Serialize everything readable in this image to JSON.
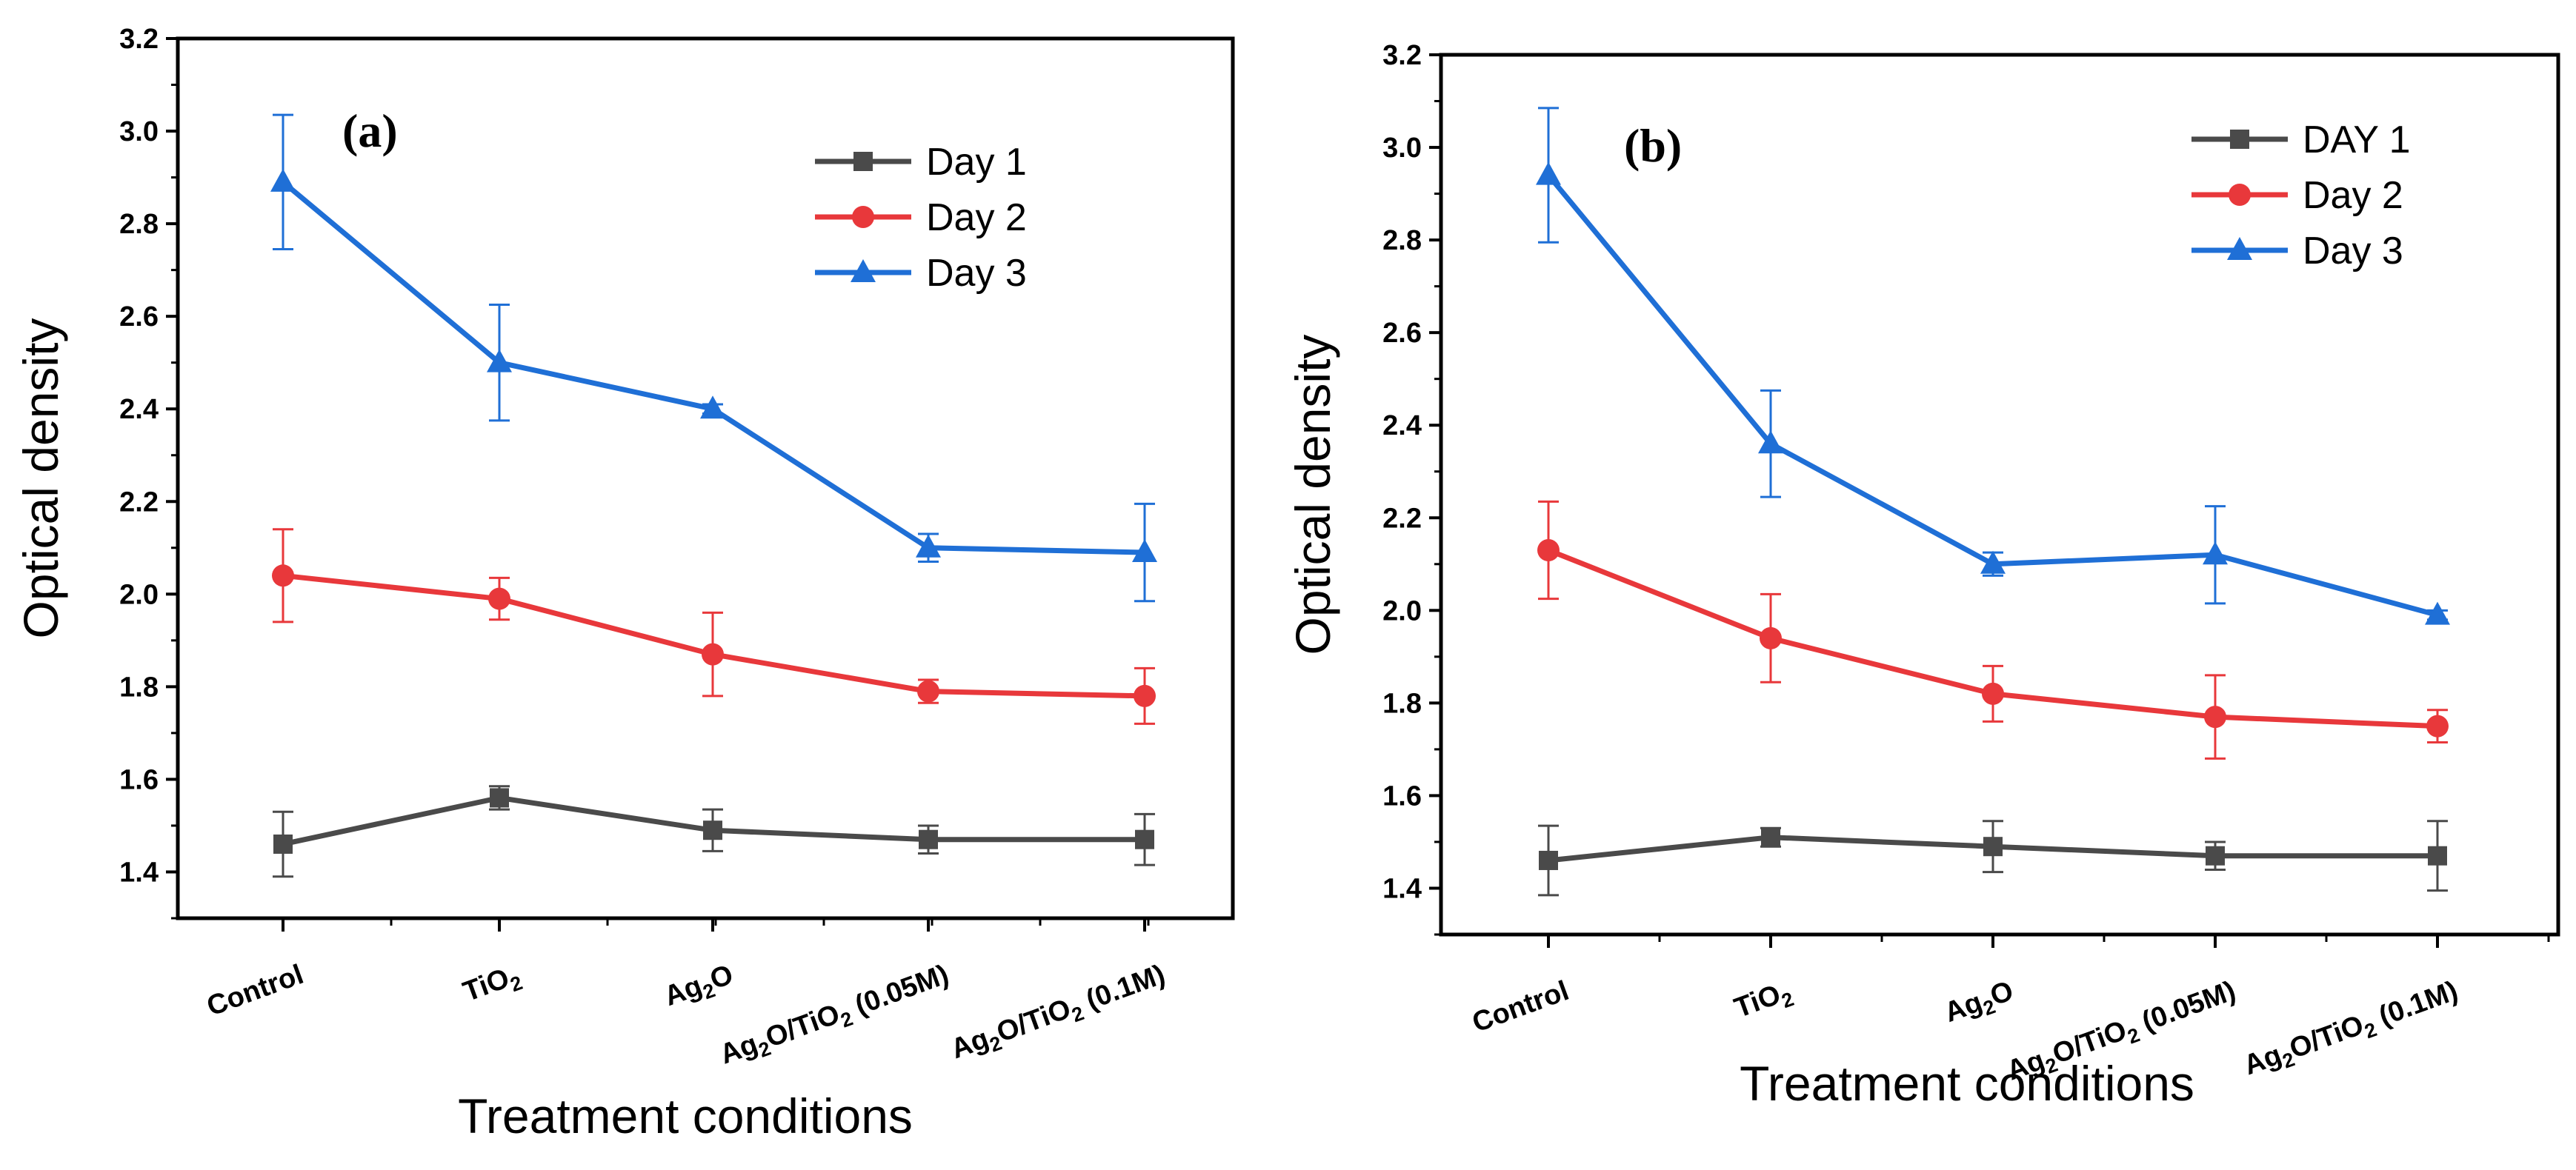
{
  "chart_data": [
    {
      "type": "line",
      "panel_label": "(a)",
      "xlabel": "Treatment conditions",
      "ylabel": "Optical density",
      "ylim": [
        1.3,
        3.2
      ],
      "yticks": [
        "1.4",
        "1.6",
        "1.8",
        "2.0",
        "2.2",
        "2.4",
        "2.6",
        "2.8",
        "3.0",
        "3.2"
      ],
      "categories": [
        {
          "base": "Control",
          "parts": [
            {
              "t": "Control",
              "sub": false
            }
          ]
        },
        {
          "base": "TiO2",
          "parts": [
            {
              "t": "TiO",
              "sub": false
            },
            {
              "t": "2",
              "sub": true
            }
          ]
        },
        {
          "base": "Ag2O",
          "parts": [
            {
              "t": "Ag",
              "sub": false
            },
            {
              "t": "2",
              "sub": true
            },
            {
              "t": "O",
              "sub": false
            }
          ]
        },
        {
          "base": "Ag2O/TiO2 (0.05M)",
          "parts": [
            {
              "t": "Ag",
              "sub": false
            },
            {
              "t": "2",
              "sub": true
            },
            {
              "t": "O/TiO",
              "sub": false
            },
            {
              "t": "2",
              "sub": true
            },
            {
              "t": " (0.05M)",
              "sub": false
            }
          ]
        },
        {
          "base": "Ag2O/TiO2 (0.1M)",
          "parts": [
            {
              "t": "Ag",
              "sub": false
            },
            {
              "t": "2",
              "sub": true
            },
            {
              "t": "O/TiO",
              "sub": false
            },
            {
              "t": "2",
              "sub": true
            },
            {
              "t": " (0.1M)",
              "sub": false
            }
          ]
        }
      ],
      "legend_position": "top-right",
      "series": [
        {
          "name": "Day 1",
          "color": "#4a4a4a",
          "marker": "square",
          "values": [
            1.46,
            1.56,
            1.49,
            1.47,
            1.47
          ],
          "errors": [
            0.07,
            0.025,
            0.045,
            0.03,
            0.055
          ]
        },
        {
          "name": "Day 2",
          "color": "#e8383b",
          "marker": "circle",
          "values": [
            2.04,
            1.99,
            1.87,
            1.79,
            1.78
          ],
          "errors": [
            0.1,
            0.045,
            0.09,
            0.025,
            0.06
          ]
        },
        {
          "name": "Day 3",
          "color": "#1f6fd6",
          "marker": "triangle",
          "values": [
            2.89,
            2.5,
            2.4,
            2.1,
            2.09
          ],
          "errors": [
            0.145,
            0.125,
            0.01,
            0.03,
            0.105
          ]
        }
      ]
    },
    {
      "type": "line",
      "panel_label": "(b)",
      "xlabel": "Treatment conditions",
      "ylabel": "Optical density",
      "ylim": [
        1.3,
        3.2
      ],
      "yticks": [
        "1.4",
        "1.6",
        "1.8",
        "2.0",
        "2.2",
        "2.4",
        "2.6",
        "2.8",
        "3.0",
        "3.2"
      ],
      "categories": [
        {
          "base": "Control",
          "parts": [
            {
              "t": "Control",
              "sub": false
            }
          ]
        },
        {
          "base": "TiO2",
          "parts": [
            {
              "t": "TiO",
              "sub": false
            },
            {
              "t": "2",
              "sub": true
            }
          ]
        },
        {
          "base": "Ag2O",
          "parts": [
            {
              "t": "Ag",
              "sub": false
            },
            {
              "t": "2",
              "sub": true
            },
            {
              "t": "O",
              "sub": false
            }
          ]
        },
        {
          "base": "Ag2O/TiO2 (0.05M)",
          "parts": [
            {
              "t": "Ag",
              "sub": false
            },
            {
              "t": "2",
              "sub": true
            },
            {
              "t": "O/TiO",
              "sub": false
            },
            {
              "t": "2",
              "sub": true
            },
            {
              "t": " (0.05M)",
              "sub": false
            }
          ]
        },
        {
          "base": "Ag2O/TiO2 (0.1M)",
          "parts": [
            {
              "t": "Ag",
              "sub": false
            },
            {
              "t": "2",
              "sub": true
            },
            {
              "t": "O/TiO",
              "sub": false
            },
            {
              "t": "2",
              "sub": true
            },
            {
              "t": " (0.1M)",
              "sub": false
            }
          ]
        }
      ],
      "legend_position": "top-right",
      "series": [
        {
          "name": "DAY 1",
          "color": "#4a4a4a",
          "marker": "square",
          "values": [
            1.46,
            1.51,
            1.49,
            1.47,
            1.47
          ],
          "errors": [
            0.075,
            0.02,
            0.055,
            0.03,
            0.075
          ]
        },
        {
          "name": "Day 2",
          "color": "#e8383b",
          "marker": "circle",
          "values": [
            2.13,
            1.94,
            1.82,
            1.77,
            1.75
          ],
          "errors": [
            0.105,
            0.095,
            0.06,
            0.09,
            0.035
          ]
        },
        {
          "name": "Day 3",
          "color": "#1f6fd6",
          "marker": "triangle",
          "values": [
            2.94,
            2.36,
            2.1,
            2.12,
            1.99
          ],
          "errors": [
            0.145,
            0.115,
            0.025,
            0.105,
            0.01
          ]
        }
      ]
    }
  ]
}
